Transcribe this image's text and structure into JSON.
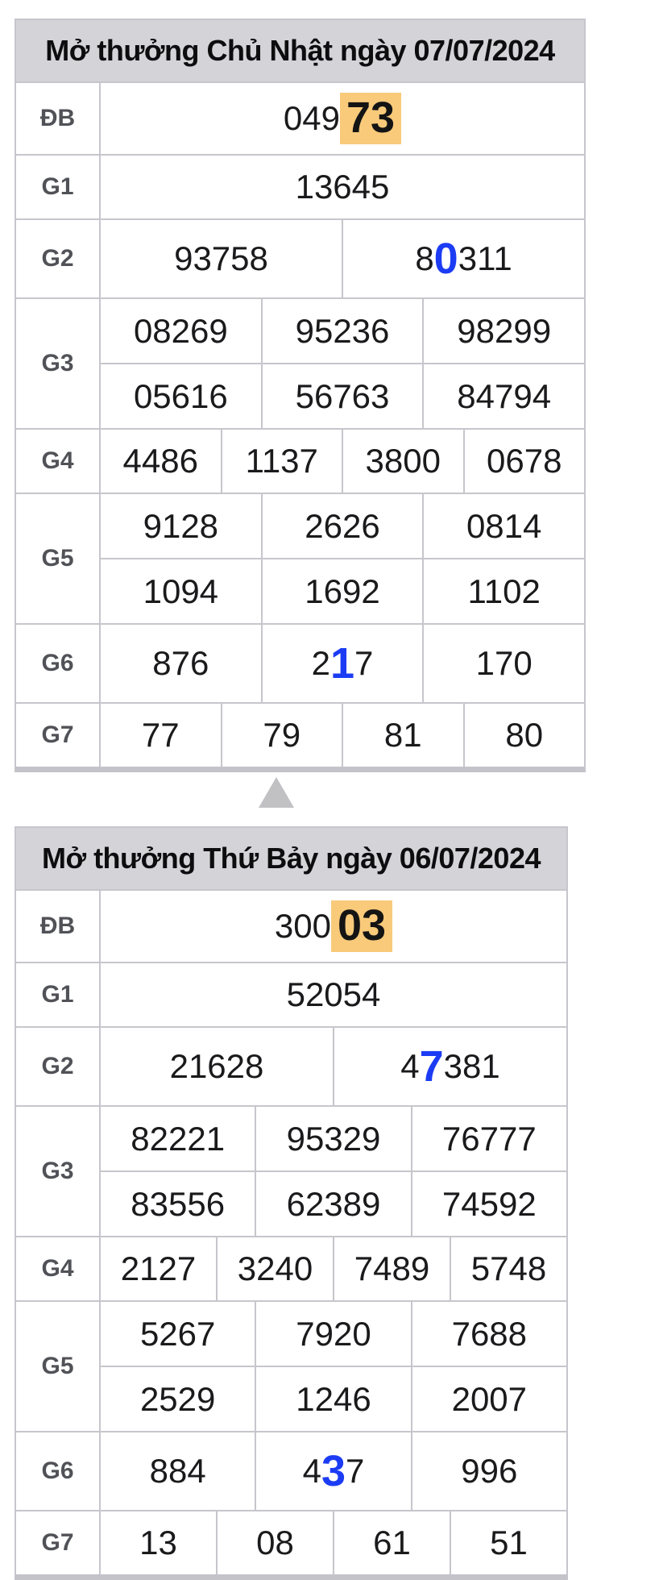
{
  "colors": {
    "header_bg": "#d3d3d8",
    "border": "#c6c6cc",
    "label_text": "#515257",
    "digit_text": "#1a1a1c",
    "highlight_bg": "#f8ca7a",
    "blue_digit": "#1c3cf4",
    "arrow": "#c1c1c4"
  },
  "separator": {
    "icon": "up-triangle-icon"
  },
  "tables": [
    {
      "title": "Mở thưởng Chủ Nhật ngày 07/07/2024",
      "rows": [
        {
          "label": "ĐB",
          "size": "db",
          "cells": [
            {
              "pre": "049",
              "mark": "73",
              "post": "",
              "mark_type": "highlight"
            }
          ]
        },
        {
          "label": "G1",
          "size": "std",
          "cells": [
            "13645"
          ]
        },
        {
          "label": "G2",
          "size": "big",
          "cells": [
            "93758",
            {
              "pre": "8",
              "mark": "0",
              "post": "311",
              "mark_type": "blue"
            }
          ]
        },
        {
          "label": "G3",
          "sub_rows": [
            [
              "08269",
              "95236",
              "98299"
            ],
            [
              "05616",
              "56763",
              "84794"
            ]
          ]
        },
        {
          "label": "G4",
          "size": "std",
          "cells": [
            "4486",
            "1137",
            "3800",
            "0678"
          ]
        },
        {
          "label": "G5",
          "sub_rows": [
            [
              "9128",
              "2626",
              "0814"
            ],
            [
              "1094",
              "1692",
              "1102"
            ]
          ]
        },
        {
          "label": "G6",
          "size": "big",
          "cells": [
            "876",
            {
              "pre": "2",
              "mark": "1",
              "post": "7",
              "mark_type": "blue"
            },
            "170"
          ]
        },
        {
          "label": "G7",
          "size": "std",
          "cells": [
            "77",
            "79",
            "81",
            "80"
          ]
        }
      ]
    },
    {
      "title": "Mở thưởng Thứ Bảy ngày 06/07/2024",
      "rows": [
        {
          "label": "ĐB",
          "size": "db",
          "cells": [
            {
              "pre": "300",
              "mark": "03",
              "post": "",
              "mark_type": "highlight"
            }
          ]
        },
        {
          "label": "G1",
          "size": "std",
          "cells": [
            "52054"
          ]
        },
        {
          "label": "G2",
          "size": "big",
          "cells": [
            "21628",
            {
              "pre": "4",
              "mark": "7",
              "post": "381",
              "mark_type": "blue"
            }
          ]
        },
        {
          "label": "G3",
          "sub_rows": [
            [
              "82221",
              "95329",
              "76777"
            ],
            [
              "83556",
              "62389",
              "74592"
            ]
          ]
        },
        {
          "label": "G4",
          "size": "std",
          "cells": [
            "2127",
            "3240",
            "7489",
            "5748"
          ]
        },
        {
          "label": "G5",
          "sub_rows": [
            [
              "5267",
              "7920",
              "7688"
            ],
            [
              "2529",
              "1246",
              "2007"
            ]
          ]
        },
        {
          "label": "G6",
          "size": "big",
          "cells": [
            "884",
            {
              "pre": "4",
              "mark": "3",
              "post": "7",
              "mark_type": "blue"
            },
            "996"
          ]
        },
        {
          "label": "G7",
          "size": "std",
          "cells": [
            "13",
            "08",
            "61",
            "51"
          ]
        }
      ]
    }
  ]
}
